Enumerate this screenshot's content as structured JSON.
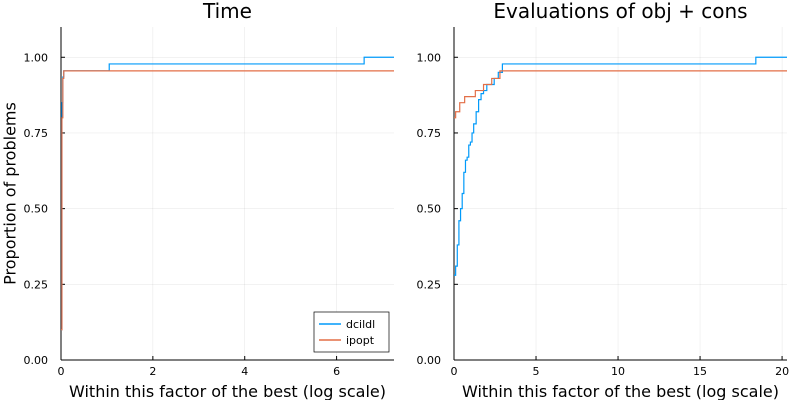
{
  "chart_data": [
    {
      "type": "line",
      "step": true,
      "title": "Time",
      "xlabel": "Within this factor of the best (log scale)",
      "ylabel": "Proportion of problems",
      "xlim": [
        0,
        7.25
      ],
      "ylim": [
        0,
        1.1
      ],
      "xticks": [
        0,
        2,
        4,
        6
      ],
      "yticks": [
        0.0,
        0.25,
        0.5,
        0.75,
        1.0
      ],
      "xtick_labels": [
        "0",
        "2",
        "4",
        "6"
      ],
      "ytick_labels": [
        "0.00",
        "0.25",
        "0.50",
        "0.75",
        "1.00"
      ],
      "grid": true,
      "legend": {
        "placement": "bottom-right"
      },
      "series": [
        {
          "name": "dcildl",
          "color": "#009AFA",
          "x": [
            0,
            0.02,
            0.04,
            0.06,
            1.05,
            6.6,
            7.25
          ],
          "y": [
            0.1,
            0.85,
            0.935,
            0.955,
            0.978,
            1.0,
            1.0
          ]
        },
        {
          "name": "ipopt",
          "color": "#E36F47",
          "x": [
            0,
            0.02,
            0.04,
            0.06,
            7.25
          ],
          "y": [
            0.1,
            0.8,
            0.93,
            0.955,
            0.955
          ]
        }
      ]
    },
    {
      "type": "line",
      "step": true,
      "title": "Evaluations of obj + cons",
      "xlabel": "Within this factor of the best (log scale)",
      "ylabel": "",
      "xlim": [
        0,
        20.3
      ],
      "ylim": [
        0,
        1.1
      ],
      "xticks": [
        0,
        5,
        10,
        15,
        20
      ],
      "yticks": [
        0.0,
        0.25,
        0.5,
        0.75,
        1.0
      ],
      "xtick_labels": [
        "0",
        "5",
        "10",
        "15",
        "20"
      ],
      "ytick_labels": [
        "0.00",
        "0.25",
        "0.50",
        "0.75",
        "1.00"
      ],
      "grid": true,
      "series": [
        {
          "name": "dcildl",
          "color": "#009AFA",
          "x": [
            0,
            0.1,
            0.2,
            0.3,
            0.4,
            0.5,
            0.6,
            0.7,
            0.8,
            0.9,
            1.0,
            1.1,
            1.2,
            1.35,
            1.5,
            1.65,
            1.8,
            2.0,
            2.2,
            2.45,
            2.7,
            2.95,
            18.4,
            20.3
          ],
          "y": [
            0.28,
            0.31,
            0.38,
            0.46,
            0.5,
            0.55,
            0.62,
            0.66,
            0.67,
            0.71,
            0.72,
            0.75,
            0.78,
            0.82,
            0.86,
            0.88,
            0.89,
            0.91,
            0.91,
            0.93,
            0.95,
            0.978,
            1.0,
            1.0
          ]
        },
        {
          "name": "ipopt",
          "color": "#E36F47",
          "x": [
            0,
            0.1,
            0.35,
            0.65,
            1.0,
            1.3,
            1.8,
            2.3,
            2.8,
            20.3
          ],
          "y": [
            0.8,
            0.82,
            0.85,
            0.87,
            0.87,
            0.89,
            0.91,
            0.93,
            0.955,
            0.955
          ]
        }
      ]
    }
  ]
}
